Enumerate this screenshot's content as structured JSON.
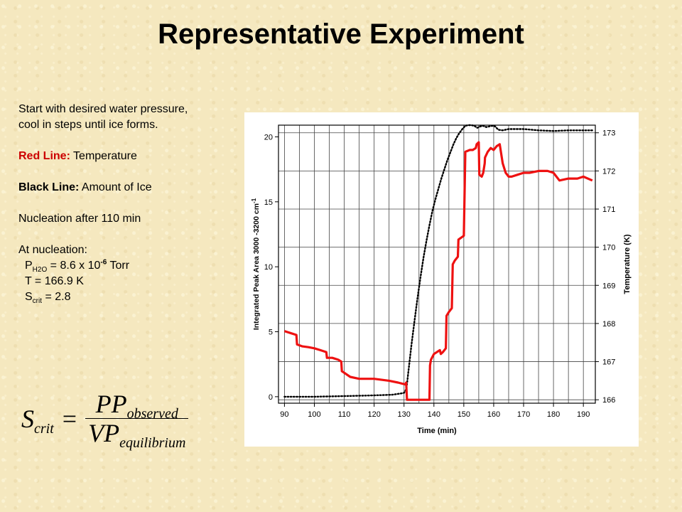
{
  "slide": {
    "title": "Representative Experiment",
    "intro_line1": "Start with desired water pressure,",
    "intro_line2": "cool in steps until ice forms.",
    "red_label": "Red Line:",
    "red_desc": " Temperature",
    "black_label": "Black Line:",
    "black_desc": " Amount of Ice",
    "nucleation": "Nucleation after 110 min",
    "at_nucleation": "At nucleation:",
    "p_symbol": "P",
    "p_sub": "H2O",
    "p_value_pre": " = 8.6 x 10",
    "p_exp": "-6",
    "p_unit": " Torr",
    "t_line": "T = 166.9 K",
    "s_symbol": "S",
    "s_sub": "crit",
    "s_value": " = 2.8"
  },
  "equation": {
    "lhs": "S",
    "lhs_sub": "crit",
    "equals": "=",
    "num": "PP",
    "num_sub": "observed",
    "den": "VP",
    "den_sub": "equilibrium"
  },
  "chart_data": {
    "type": "line",
    "xlabel": "Time (min)",
    "ylabel_left": "Integrated Peak Area 3000 -3200 cm",
    "ylabel_left_sup": "-1",
    "ylabel_right": "Temperature (K)",
    "xlim": [
      88,
      194
    ],
    "ylim_left": [
      -0.5,
      20.9
    ],
    "ylim_right": [
      165.91,
      173.2
    ],
    "x_ticks": [
      90,
      100,
      110,
      120,
      130,
      140,
      150,
      160,
      170,
      180,
      190
    ],
    "y_ticks_left": [
      0,
      5,
      10,
      15,
      20
    ],
    "y_ticks_right": [
      166,
      167,
      168,
      169,
      170,
      171,
      172,
      173
    ],
    "grid": true,
    "series": [
      {
        "axis": "left",
        "color": "#000000",
        "style": "dots",
        "x": [
          90,
          100,
          110,
          120,
          126,
          129,
          130,
          130.8,
          131.5,
          132.5,
          133.5,
          134.5,
          135.5,
          136.5,
          137.5,
          138.5,
          139.5,
          140.5,
          141.5,
          142.5,
          143.5,
          144.5,
          145.5,
          146.5,
          147.5,
          148.5,
          149.5,
          150.5,
          151.5,
          152.5,
          153.5,
          154.5,
          155.5,
          156.5,
          157.5,
          158.5,
          159.5,
          160.5,
          161.5,
          163,
          165,
          170,
          175,
          180,
          185,
          190,
          193
        ],
        "y": [
          0.0,
          0.0,
          0.05,
          0.1,
          0.15,
          0.25,
          0.3,
          0.6,
          2.0,
          4.0,
          5.8,
          7.6,
          9.2,
          10.7,
          12.0,
          13.2,
          14.3,
          15.2,
          16.0,
          16.8,
          17.5,
          18.2,
          18.8,
          19.4,
          19.9,
          20.3,
          20.6,
          20.85,
          20.9,
          20.9,
          20.85,
          20.7,
          20.8,
          20.85,
          20.75,
          20.8,
          20.85,
          20.8,
          20.55,
          20.5,
          20.6,
          20.6,
          20.5,
          20.45,
          20.5,
          20.5,
          20.5
        ]
      },
      {
        "axis": "right",
        "color": "#ee1111",
        "style": "line",
        "x": [
          90,
          92,
          94,
          94.2,
          96,
          98,
          100,
          102,
          104,
          104.2,
          106,
          108,
          109,
          109.2,
          112,
          115,
          120,
          125,
          128,
          130.5,
          130.7,
          131,
          138.5,
          138.7,
          139,
          140,
          142,
          142.3,
          143,
          144,
          144.2,
          145,
          146,
          146.3,
          147,
          148,
          148.2,
          150,
          150.5,
          152,
          153,
          154,
          154.3,
          155,
          155.2,
          156,
          156.5,
          157,
          157.1,
          158,
          159,
          160,
          161,
          162,
          163,
          164,
          165,
          166,
          168,
          170,
          172,
          175,
          178,
          180,
          182,
          185,
          188,
          190,
          193
        ],
        "y": [
          167.8,
          167.75,
          167.7,
          167.45,
          167.4,
          167.38,
          167.35,
          167.3,
          167.25,
          167.1,
          167.1,
          167.05,
          167.0,
          166.75,
          166.6,
          166.55,
          166.55,
          166.5,
          166.45,
          166.4,
          166.45,
          166.0,
          166.0,
          166.9,
          167.05,
          167.2,
          167.3,
          167.2,
          167.25,
          167.35,
          168.2,
          168.3,
          168.4,
          169.55,
          169.65,
          169.75,
          170.2,
          170.3,
          172.5,
          172.55,
          172.55,
          172.6,
          172.7,
          172.75,
          171.9,
          171.85,
          171.95,
          172.2,
          172.35,
          172.5,
          172.6,
          172.55,
          172.65,
          172.7,
          172.2,
          171.95,
          171.85,
          171.85,
          171.9,
          171.95,
          171.95,
          172.0,
          172.0,
          171.95,
          171.75,
          171.8,
          171.8,
          171.85,
          171.75
        ]
      }
    ]
  },
  "colors": {
    "background": "#f5e8bf",
    "red_text": "#cc0000",
    "temp_line": "#ee1111",
    "ice_line": "#000000"
  }
}
